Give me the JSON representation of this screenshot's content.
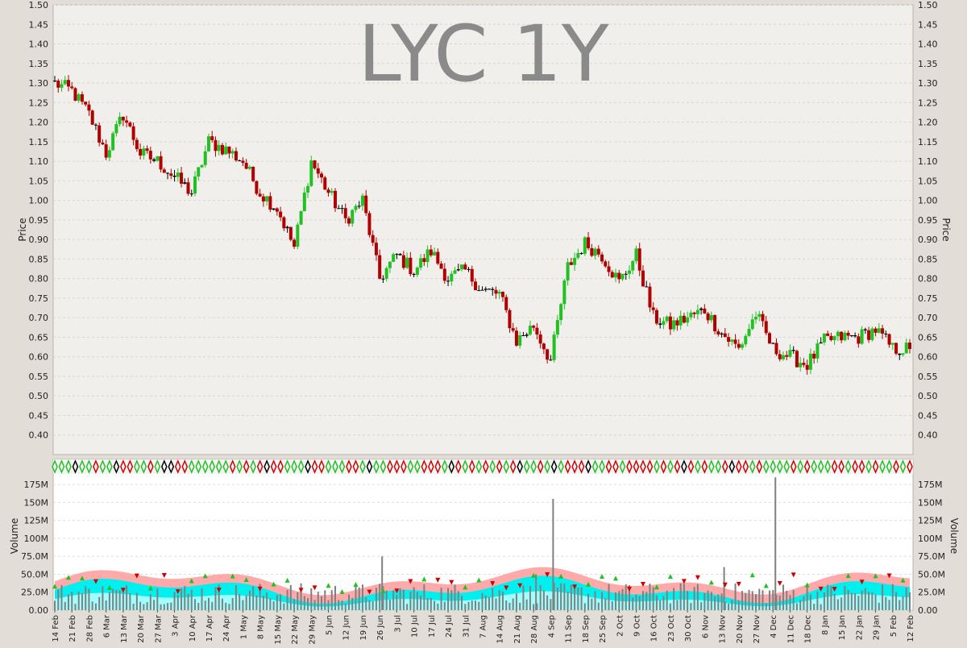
{
  "chart_data": [
    {
      "type": "candlestick",
      "title": "LYC 1Y",
      "ylabel": "Price",
      "ylim": [
        0.35,
        1.5
      ],
      "yticks": [
        "0.40",
        "0.45",
        "0.50",
        "0.55",
        "0.60",
        "0.65",
        "0.70",
        "0.75",
        "0.80",
        "0.85",
        "0.90",
        "0.95",
        "1.00",
        "1.05",
        "1.10",
        "1.15",
        "1.20",
        "1.25",
        "1.30",
        "1.35",
        "1.40",
        "1.45",
        "1.50"
      ],
      "grid": true,
      "colors": {
        "up": "#22c022",
        "down": "#b00000",
        "neutral": "#000000"
      },
      "x_labels": [
        "14 Feb",
        "21 Feb",
        "28 Feb",
        "6 Mar",
        "13 Mar",
        "20 Mar",
        "27 Mar",
        "3 Apr",
        "10 Apr",
        "17 Apr",
        "24 Apr",
        "1 May",
        "8 May",
        "15 May",
        "22 May",
        "29 May",
        "5 Jun",
        "12 Jun",
        "19 Jun",
        "26 Jun",
        "3 Jul",
        "10 Jul",
        "17 Jul",
        "24 Jul",
        "31 Jul",
        "7 Aug",
        "14 Aug",
        "21 Aug",
        "28 Aug",
        "4 Sep",
        "11 Sep",
        "18 Sep",
        "25 Sep",
        "2 Oct",
        "9 Oct",
        "16 Oct",
        "23 Oct",
        "30 Oct",
        "6 Nov",
        "13 Nov",
        "20 Nov",
        "27 Nov",
        "4 Dec",
        "11 Dec",
        "18 Dec",
        "8 Jan",
        "15 Jan",
        "22 Jan",
        "29 Jan",
        "5 Feb",
        "12 Feb"
      ],
      "weekly_anchors": [
        {
          "x": "14 Feb",
          "close": 1.3
        },
        {
          "x": "21 Feb",
          "close": 1.28
        },
        {
          "x": "28 Feb",
          "close": 1.22
        },
        {
          "x": "6 Mar",
          "close": 1.12
        },
        {
          "x": "13 Mar",
          "close": 1.22
        },
        {
          "x": "20 Mar",
          "close": 1.12
        },
        {
          "x": "27 Mar",
          "close": 1.1
        },
        {
          "x": "3 Apr",
          "close": 1.06
        },
        {
          "x": "10 Apr",
          "close": 1.02
        },
        {
          "x": "17 Apr",
          "close": 1.15
        },
        {
          "x": "24 Apr",
          "close": 1.13
        },
        {
          "x": "1 May",
          "close": 1.1
        },
        {
          "x": "8 May",
          "close": 1.02
        },
        {
          "x": "15 May",
          "close": 0.98
        },
        {
          "x": "22 May",
          "close": 0.88
        },
        {
          "x": "29 May",
          "close": 1.1
        },
        {
          "x": "5 Jun",
          "close": 1.02
        },
        {
          "x": "12 Jun",
          "close": 0.95
        },
        {
          "x": "19 Jun",
          "close": 1.0
        },
        {
          "x": "26 Jun",
          "close": 0.8
        },
        {
          "x": "3 Jul",
          "close": 0.86
        },
        {
          "x": "10 Jul",
          "close": 0.82
        },
        {
          "x": "17 Jul",
          "close": 0.87
        },
        {
          "x": "24 Jul",
          "close": 0.8
        },
        {
          "x": "31 Jul",
          "close": 0.82
        },
        {
          "x": "7 Aug",
          "close": 0.77
        },
        {
          "x": "14 Aug",
          "close": 0.76
        },
        {
          "x": "21 Aug",
          "close": 0.64
        },
        {
          "x": "28 Aug",
          "close": 0.68
        },
        {
          "x": "4 Sep",
          "close": 0.59
        },
        {
          "x": "11 Sep",
          "close": 0.83
        },
        {
          "x": "18 Sep",
          "close": 0.89
        },
        {
          "x": "25 Sep",
          "close": 0.86
        },
        {
          "x": "2 Oct",
          "close": 0.79
        },
        {
          "x": "9 Oct",
          "close": 0.86
        },
        {
          "x": "16 Oct",
          "close": 0.7
        },
        {
          "x": "23 Oct",
          "close": 0.68
        },
        {
          "x": "30 Oct",
          "close": 0.7
        },
        {
          "x": "6 Nov",
          "close": 0.72
        },
        {
          "x": "13 Nov",
          "close": 0.66
        },
        {
          "x": "20 Nov",
          "close": 0.62
        },
        {
          "x": "27 Nov",
          "close": 0.71
        },
        {
          "x": "4 Dec",
          "close": 0.62
        },
        {
          "x": "11 Dec",
          "close": 0.6
        },
        {
          "x": "18 Dec",
          "close": 0.58
        },
        {
          "x": "8 Jan",
          "close": 0.64
        },
        {
          "x": "15 Jan",
          "close": 0.65
        },
        {
          "x": "22 Jan",
          "close": 0.65
        },
        {
          "x": "29 Jan",
          "close": 0.67
        },
        {
          "x": "5 Feb",
          "close": 0.62
        },
        {
          "x": "12 Feb",
          "close": 0.62
        }
      ]
    },
    {
      "type": "bar",
      "ylabel": "Volume",
      "ylim": [
        0,
        187500000
      ],
      "yticks": [
        "0.00",
        "25.0M",
        "50.0M",
        "75.0M",
        "100M",
        "125M",
        "150M",
        "175M"
      ],
      "grid": true,
      "volume_peaks": [
        {
          "x": "26 Jun",
          "value": 75000000
        },
        {
          "x": "28 Aug",
          "value": 50000000
        },
        {
          "x": "4 Sep",
          "value": 155000000
        },
        {
          "x": "13 Nov",
          "value": 60000000
        },
        {
          "x": "4 Dec",
          "value": 185000000
        }
      ],
      "band_colors": {
        "upper": "#ffaaaa",
        "middle": "#00f0f0",
        "inner": "#a0ffff",
        "volume": "#808080"
      }
    }
  ]
}
